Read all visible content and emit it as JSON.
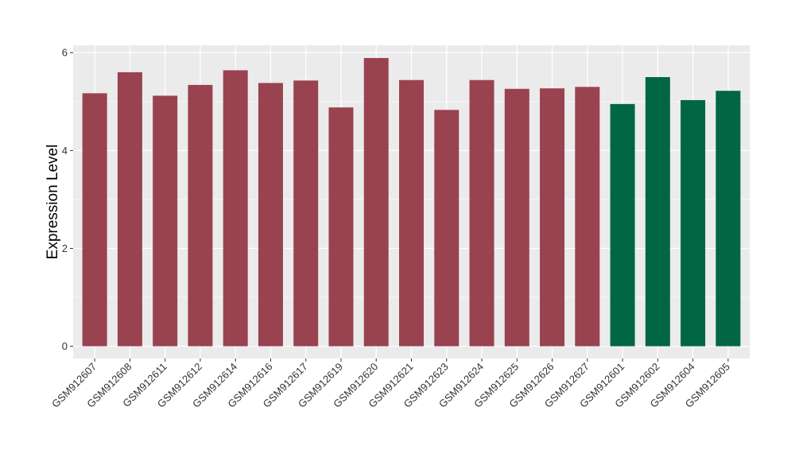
{
  "chart_data": {
    "type": "bar",
    "title": "",
    "xlabel": "",
    "ylabel": "Expression Level",
    "ylim": [
      -0.25,
      6.15
    ],
    "yticks": [
      0,
      2,
      4,
      6
    ],
    "grid": true,
    "legend": "none",
    "categories": [
      "GSM912607",
      "GSM912608",
      "GSM912611",
      "GSM912612",
      "GSM912614",
      "GSM912616",
      "GSM912617",
      "GSM912619",
      "GSM912620",
      "GSM912621",
      "GSM912623",
      "GSM912624",
      "GSM912625",
      "GSM912626",
      "GSM912627",
      "GSM912601",
      "GSM912602",
      "GSM912604",
      "GSM912605"
    ],
    "values": [
      5.17,
      5.6,
      5.12,
      5.34,
      5.64,
      5.38,
      5.43,
      4.88,
      5.89,
      5.44,
      4.83,
      5.44,
      5.26,
      5.27,
      5.3,
      4.95,
      5.5,
      5.03,
      5.22
    ],
    "groups": [
      "a",
      "a",
      "a",
      "a",
      "a",
      "a",
      "a",
      "a",
      "a",
      "a",
      "a",
      "a",
      "a",
      "a",
      "a",
      "b",
      "b",
      "b",
      "b"
    ],
    "colors": {
      "a": "#994250",
      "b": "#006644",
      "panel": "#ebebeb",
      "grid": "#ffffff"
    }
  }
}
